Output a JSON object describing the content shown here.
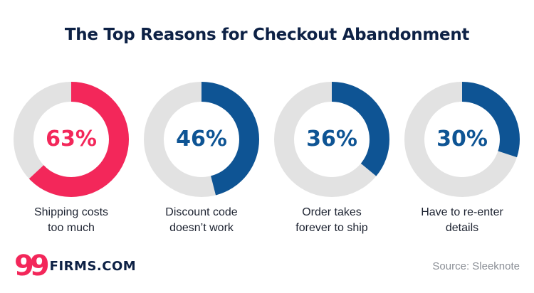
{
  "chart_data": {
    "type": "pie",
    "title": "The Top Reasons for Checkout Abandonment",
    "categories": [
      "Shipping costs too much",
      "Discount code doesn’t work",
      "Order takes forever to ship",
      "Have to re-enter details"
    ],
    "values": [
      63,
      46,
      36,
      30
    ],
    "value_labels": [
      "63%",
      "46%",
      "36%",
      "30%"
    ],
    "captions": [
      [
        "Shipping costs",
        "too much"
      ],
      [
        "Discount code",
        "doesn’t work"
      ],
      [
        "Order takes",
        "forever to ship"
      ],
      [
        "Have to re-enter",
        "details"
      ]
    ],
    "colors": [
      "#f3275a",
      "#0e5494",
      "#0e5494",
      "#0e5494"
    ],
    "track_color": "#e2e2e2"
  },
  "brand": {
    "logo_mark": "99",
    "logo_text": "FIRMS.COM"
  },
  "source": "Source: Sleeknote"
}
